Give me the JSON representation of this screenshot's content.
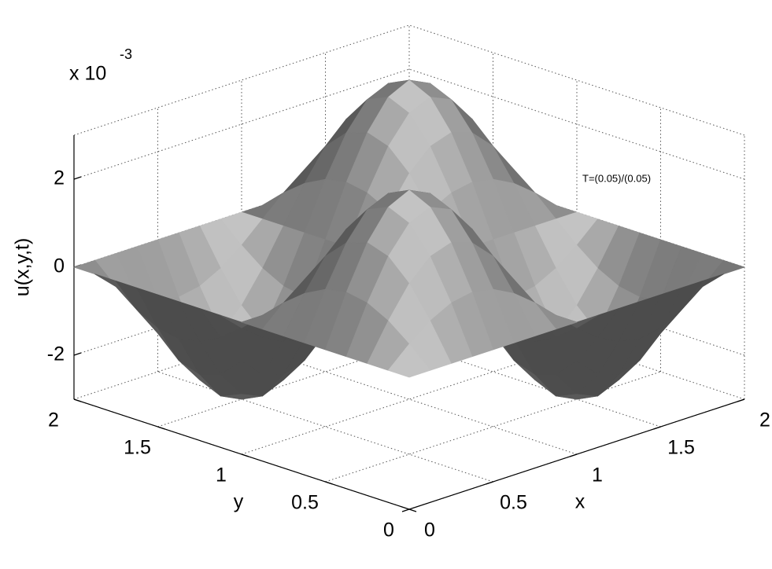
{
  "chart_data": {
    "type": "surface",
    "xlabel": "x",
    "ylabel": "y",
    "zlabel": "u(x,y,t)",
    "z_multiplier": "x 10",
    "z_exponent": "-3",
    "annotation": "T=(0.05)/(0.05)",
    "color": "#a8a8a8",
    "grid": true,
    "xlim": [
      0,
      2
    ],
    "ylim": [
      0,
      2
    ],
    "zlim": [
      -3,
      3
    ],
    "xticks": [
      0,
      0.5,
      1,
      1.5,
      2
    ],
    "yticks": [
      0,
      0.5,
      1,
      1.5,
      2
    ],
    "zticks": [
      -2,
      0,
      2
    ],
    "x": [
      0,
      0.125,
      0.25,
      0.375,
      0.5,
      0.625,
      0.75,
      0.875,
      1,
      1.125,
      1.25,
      1.375,
      1.5,
      1.625,
      1.75,
      1.875,
      2
    ],
    "y": [
      0,
      0.125,
      0.25,
      0.375,
      0.5,
      0.625,
      0.75,
      0.875,
      1,
      1.125,
      1.25,
      1.375,
      1.5,
      1.625,
      1.75,
      1.875,
      2
    ],
    "z": [
      [
        0,
        0,
        0,
        0,
        0,
        0,
        0,
        0,
        0,
        0,
        0,
        0,
        0,
        0,
        0,
        0,
        0
      ],
      [
        0,
        0.44,
        0.81,
        1.06,
        1.15,
        1.06,
        0.81,
        0.44,
        0,
        -0.44,
        -0.81,
        -1.06,
        -1.15,
        -1.06,
        -0.81,
        -0.44,
        0
      ],
      [
        0,
        0.81,
        1.5,
        1.96,
        2.12,
        1.96,
        1.5,
        0.81,
        0,
        -0.81,
        -1.5,
        -1.96,
        -2.12,
        -1.96,
        -1.5,
        -0.81,
        0
      ],
      [
        0,
        1.06,
        1.96,
        2.56,
        2.77,
        2.56,
        1.96,
        1.06,
        0,
        -1.06,
        -1.96,
        -2.56,
        -2.77,
        -2.56,
        -1.96,
        -1.06,
        0
      ],
      [
        0,
        1.15,
        2.12,
        2.77,
        3,
        2.77,
        2.12,
        1.15,
        0,
        -1.15,
        -2.12,
        -2.77,
        -3,
        -2.77,
        -2.12,
        -1.15,
        0
      ],
      [
        0,
        1.06,
        1.96,
        2.56,
        2.77,
        2.56,
        1.96,
        1.06,
        0,
        -1.06,
        -1.96,
        -2.56,
        -2.77,
        -2.56,
        -1.96,
        -1.06,
        0
      ],
      [
        0,
        0.81,
        1.5,
        1.96,
        2.12,
        1.96,
        1.5,
        0.81,
        0,
        -0.81,
        -1.5,
        -1.96,
        -2.12,
        -1.96,
        -1.5,
        -0.81,
        0
      ],
      [
        0,
        0.44,
        0.81,
        1.06,
        1.15,
        1.06,
        0.81,
        0.44,
        0,
        -0.44,
        -0.81,
        -1.06,
        -1.15,
        -1.06,
        -0.81,
        -0.44,
        0
      ],
      [
        0,
        0,
        0,
        0,
        0,
        0,
        0,
        0,
        0,
        0,
        0,
        0,
        0,
        0,
        0,
        0,
        0
      ],
      [
        0,
        -0.44,
        -0.81,
        -1.06,
        -1.15,
        -1.06,
        -0.81,
        -0.44,
        0,
        0.44,
        0.81,
        1.06,
        1.15,
        1.06,
        0.81,
        0.44,
        0
      ],
      [
        0,
        -0.81,
        -1.5,
        -1.96,
        -2.12,
        -1.96,
        -1.5,
        -0.81,
        0,
        0.81,
        1.5,
        1.96,
        2.12,
        1.96,
        1.5,
        0.81,
        0
      ],
      [
        0,
        -1.06,
        -1.96,
        -2.56,
        -2.77,
        -2.56,
        -1.96,
        -1.06,
        0,
        1.06,
        1.96,
        2.56,
        2.77,
        2.56,
        1.96,
        1.06,
        0
      ],
      [
        0,
        -1.15,
        -2.12,
        -2.77,
        -3,
        -2.77,
        -2.12,
        -1.15,
        0,
        1.15,
        2.12,
        2.77,
        3,
        2.77,
        2.12,
        1.15,
        0
      ],
      [
        0,
        -1.06,
        -1.96,
        -2.56,
        -2.77,
        -2.56,
        -1.96,
        -1.06,
        0,
        1.06,
        1.96,
        2.56,
        2.77,
        2.56,
        1.96,
        1.06,
        0
      ],
      [
        0,
        -0.81,
        -1.5,
        -1.96,
        -2.12,
        -1.96,
        -1.5,
        -0.81,
        0,
        0.81,
        1.5,
        1.96,
        2.12,
        1.96,
        1.5,
        0.81,
        0
      ],
      [
        0,
        -0.44,
        -0.81,
        -1.06,
        -1.15,
        -1.06,
        -0.81,
        -0.44,
        0,
        0.44,
        0.81,
        1.06,
        1.15,
        1.06,
        0.81,
        0.44,
        0
      ],
      [
        0,
        0,
        0,
        0,
        0,
        0,
        0,
        0,
        0,
        0,
        0,
        0,
        0,
        0,
        0,
        0,
        0
      ]
    ]
  }
}
